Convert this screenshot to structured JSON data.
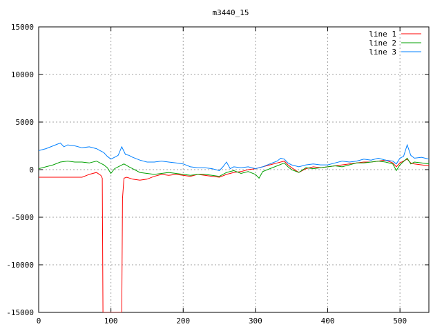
{
  "chart_data": {
    "type": "line",
    "title": "m3440_15",
    "xlabel": "",
    "ylabel": "",
    "xlim": [
      0,
      540
    ],
    "ylim": [
      -15000,
      15000
    ],
    "xticks": [
      0,
      100,
      200,
      300,
      400,
      500
    ],
    "yticks": [
      -15000,
      -10000,
      -5000,
      0,
      5000,
      10000,
      15000
    ],
    "grid": true,
    "legend_position": "top-right",
    "series": [
      {
        "name": "line 1",
        "color": "#ff0000",
        "points": [
          [
            0,
            -800
          ],
          [
            20,
            -800
          ],
          [
            40,
            -800
          ],
          [
            60,
            -800
          ],
          [
            70,
            -500
          ],
          [
            80,
            -300
          ],
          [
            86,
            -600
          ],
          [
            88,
            -900
          ],
          [
            89,
            -15000
          ],
          [
            115,
            -15000
          ],
          [
            116,
            -3000
          ],
          [
            118,
            -900
          ],
          [
            122,
            -800
          ],
          [
            130,
            -1000
          ],
          [
            140,
            -1100
          ],
          [
            150,
            -1000
          ],
          [
            160,
            -700
          ],
          [
            170,
            -500
          ],
          [
            180,
            -600
          ],
          [
            190,
            -500
          ],
          [
            200,
            -600
          ],
          [
            210,
            -700
          ],
          [
            220,
            -500
          ],
          [
            230,
            -600
          ],
          [
            240,
            -700
          ],
          [
            250,
            -800
          ],
          [
            260,
            -500
          ],
          [
            270,
            -300
          ],
          [
            280,
            -200
          ],
          [
            290,
            0
          ],
          [
            300,
            100
          ],
          [
            310,
            300
          ],
          [
            320,
            500
          ],
          [
            330,
            700
          ],
          [
            340,
            900
          ],
          [
            345,
            500
          ],
          [
            350,
            200
          ],
          [
            360,
            -300
          ],
          [
            370,
            100
          ],
          [
            380,
            300
          ],
          [
            390,
            200
          ],
          [
            400,
            300
          ],
          [
            410,
            400
          ],
          [
            420,
            500
          ],
          [
            430,
            600
          ],
          [
            440,
            700
          ],
          [
            450,
            800
          ],
          [
            460,
            800
          ],
          [
            470,
            900
          ],
          [
            480,
            1000
          ],
          [
            490,
            700
          ],
          [
            495,
            300
          ],
          [
            500,
            700
          ],
          [
            510,
            1100
          ],
          [
            515,
            700
          ],
          [
            520,
            600
          ],
          [
            530,
            500
          ],
          [
            540,
            400
          ]
        ]
      },
      {
        "name": "line 2",
        "color": "#00a000",
        "points": [
          [
            0,
            100
          ],
          [
            10,
            300
          ],
          [
            20,
            500
          ],
          [
            30,
            800
          ],
          [
            40,
            900
          ],
          [
            50,
            800
          ],
          [
            60,
            800
          ],
          [
            70,
            700
          ],
          [
            80,
            900
          ],
          [
            90,
            500
          ],
          [
            95,
            200
          ],
          [
            100,
            -400
          ],
          [
            105,
            100
          ],
          [
            110,
            300
          ],
          [
            118,
            600
          ],
          [
            125,
            300
          ],
          [
            130,
            100
          ],
          [
            140,
            -300
          ],
          [
            150,
            -400
          ],
          [
            160,
            -500
          ],
          [
            170,
            -400
          ],
          [
            180,
            -300
          ],
          [
            190,
            -400
          ],
          [
            200,
            -500
          ],
          [
            210,
            -600
          ],
          [
            220,
            -500
          ],
          [
            230,
            -500
          ],
          [
            240,
            -600
          ],
          [
            250,
            -700
          ],
          [
            260,
            -300
          ],
          [
            270,
            -100
          ],
          [
            280,
            -400
          ],
          [
            290,
            -200
          ],
          [
            300,
            -500
          ],
          [
            305,
            -900
          ],
          [
            310,
            -200
          ],
          [
            320,
            100
          ],
          [
            330,
            400
          ],
          [
            340,
            700
          ],
          [
            345,
            300
          ],
          [
            350,
            0
          ],
          [
            360,
            -300
          ],
          [
            370,
            200
          ],
          [
            380,
            100
          ],
          [
            390,
            200
          ],
          [
            400,
            300
          ],
          [
            410,
            400
          ],
          [
            420,
            300
          ],
          [
            430,
            500
          ],
          [
            440,
            700
          ],
          [
            450,
            700
          ],
          [
            460,
            800
          ],
          [
            470,
            900
          ],
          [
            480,
            800
          ],
          [
            490,
            600
          ],
          [
            495,
            -100
          ],
          [
            500,
            500
          ],
          [
            510,
            1200
          ],
          [
            515,
            600
          ],
          [
            520,
            800
          ],
          [
            530,
            700
          ],
          [
            540,
            600
          ]
        ]
      },
      {
        "name": "line 3",
        "color": "#0080ff",
        "points": [
          [
            0,
            2000
          ],
          [
            10,
            2200
          ],
          [
            20,
            2500
          ],
          [
            30,
            2800
          ],
          [
            35,
            2400
          ],
          [
            40,
            2600
          ],
          [
            50,
            2500
          ],
          [
            60,
            2300
          ],
          [
            70,
            2400
          ],
          [
            80,
            2200
          ],
          [
            85,
            2000
          ],
          [
            90,
            1800
          ],
          [
            95,
            1400
          ],
          [
            100,
            1100
          ],
          [
            105,
            1300
          ],
          [
            110,
            1500
          ],
          [
            115,
            2400
          ],
          [
            120,
            1600
          ],
          [
            125,
            1500
          ],
          [
            130,
            1300
          ],
          [
            140,
            1000
          ],
          [
            150,
            800
          ],
          [
            160,
            800
          ],
          [
            170,
            900
          ],
          [
            180,
            800
          ],
          [
            190,
            700
          ],
          [
            200,
            600
          ],
          [
            210,
            300
          ],
          [
            220,
            200
          ],
          [
            230,
            200
          ],
          [
            240,
            100
          ],
          [
            250,
            -100
          ],
          [
            255,
            300
          ],
          [
            260,
            800
          ],
          [
            265,
            100
          ],
          [
            270,
            300
          ],
          [
            280,
            200
          ],
          [
            290,
            300
          ],
          [
            300,
            100
          ],
          [
            310,
            300
          ],
          [
            320,
            600
          ],
          [
            330,
            900
          ],
          [
            335,
            1200
          ],
          [
            340,
            1100
          ],
          [
            345,
            700
          ],
          [
            350,
            500
          ],
          [
            360,
            300
          ],
          [
            370,
            500
          ],
          [
            380,
            600
          ],
          [
            390,
            500
          ],
          [
            400,
            500
          ],
          [
            410,
            700
          ],
          [
            420,
            900
          ],
          [
            430,
            800
          ],
          [
            440,
            900
          ],
          [
            450,
            1100
          ],
          [
            460,
            1000
          ],
          [
            470,
            1200
          ],
          [
            480,
            1000
          ],
          [
            490,
            900
          ],
          [
            495,
            600
          ],
          [
            500,
            1200
          ],
          [
            505,
            1400
          ],
          [
            510,
            2600
          ],
          [
            515,
            1500
          ],
          [
            520,
            1200
          ],
          [
            530,
            1300
          ],
          [
            540,
            1100
          ]
        ]
      }
    ]
  }
}
